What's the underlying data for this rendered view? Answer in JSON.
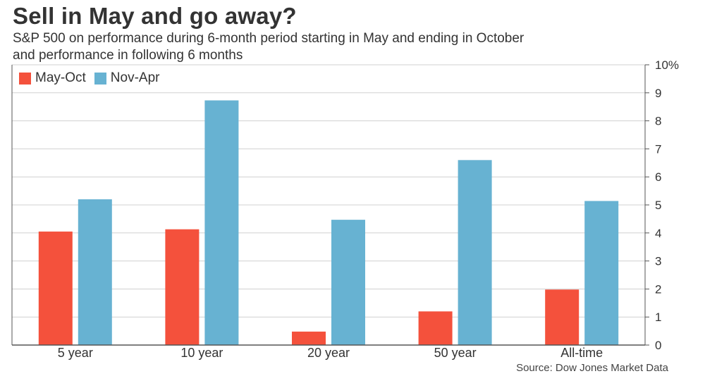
{
  "title": "Sell in May and go away?",
  "subtitle": {
    "line1": "S&P 500 on performance during 6-month period starting in May and ending in October",
    "line2": "and performance in following 6 months"
  },
  "source": "Source: Dow Jones Market Data",
  "colors": {
    "may_oct": "#f4513c",
    "nov_apr": "#67b2d2",
    "grid": "#d0d0d0",
    "axis": "#555555"
  },
  "chart_data": {
    "type": "bar",
    "categories": [
      "5 year",
      "10 year",
      "20 year",
      "50 year",
      "All-time"
    ],
    "series": [
      {
        "name": "May-Oct",
        "values": [
          4.05,
          4.13,
          0.48,
          1.2,
          1.98
        ]
      },
      {
        "name": "Nov-Apr",
        "values": [
          5.2,
          8.73,
          4.47,
          6.6,
          5.14
        ]
      }
    ],
    "title": "Sell in May and go away?",
    "xlabel": "",
    "ylabel": "",
    "ylim": [
      0,
      10
    ],
    "yticks": [
      "0",
      "1",
      "2",
      "3",
      "4",
      "5",
      "6",
      "7",
      "8",
      "9",
      "10%"
    ],
    "grid": true,
    "legend_position": "top-left",
    "y_axis_side": "right"
  }
}
